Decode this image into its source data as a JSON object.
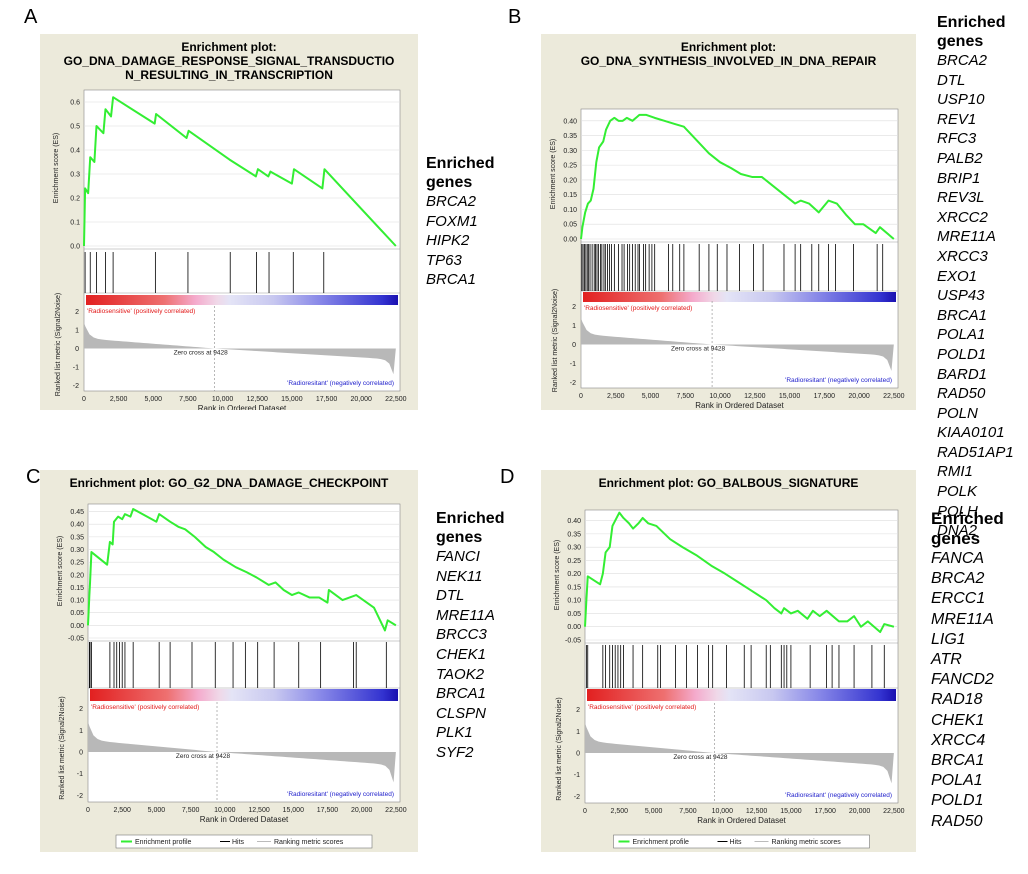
{
  "common": {
    "x_axis_label": "Rank in Ordered Dataset",
    "es_axis_label": "Enrichment score (ES)",
    "metric_axis_label": "Ranked list metric (Signal2Noise)",
    "positive_label": "'Radiosensitive' (positively correlated)",
    "negative_label": "'Radioresitant' (negatively correlated)",
    "zero_cross": "Zero cross at 9428",
    "legend": {
      "profile": "Enrichment profile",
      "hits": "Hits",
      "ranking": "Ranking metric scores"
    },
    "x_ticks": [
      "0",
      "2,500",
      "5,000",
      "7,500",
      "10,000",
      "12,500",
      "15,000",
      "17,500",
      "20,000",
      "22,500"
    ],
    "metric_ticks": [
      "2",
      "1",
      "0",
      "-1",
      "-2"
    ],
    "colors": {
      "es_line": "#33ee33",
      "hit_line": "#000000",
      "pos": "#ee2222",
      "neg": "#2222cc"
    }
  },
  "chart_data": [
    {
      "panel_label": "A",
      "type": "line",
      "title_line1": "Enrichment plot:",
      "title_lines": [
        "GO_DNA_DAMAGE_RESPONSE_SIGNAL_TRANSDUCTIO",
        "N_RESULTING_IN_TRANSCRIPTION"
      ],
      "xlim": [
        0,
        22800
      ],
      "ylim": [
        0,
        0.65
      ],
      "es_ticks": [
        0.0,
        0.1,
        0.2,
        0.3,
        0.4,
        0.5,
        0.6
      ],
      "es_tick_labels": [
        "0.0",
        "0.1",
        "0.2",
        "0.3",
        "0.4",
        "0.5",
        "0.6"
      ],
      "es_points": [
        [
          0,
          0
        ],
        [
          80,
          0.24
        ],
        [
          300,
          0.22
        ],
        [
          450,
          0.37
        ],
        [
          750,
          0.35
        ],
        [
          900,
          0.5
        ],
        [
          1400,
          0.47
        ],
        [
          1550,
          0.57
        ],
        [
          1950,
          0.54
        ],
        [
          2100,
          0.62
        ],
        [
          5100,
          0.51
        ],
        [
          5200,
          0.55
        ],
        [
          7400,
          0.45
        ],
        [
          7550,
          0.48
        ],
        [
          10500,
          0.36
        ],
        [
          12400,
          0.29
        ],
        [
          12550,
          0.32
        ],
        [
          13300,
          0.29
        ],
        [
          13450,
          0.31
        ],
        [
          15000,
          0.26
        ],
        [
          15150,
          0.32
        ],
        [
          17200,
          0.24
        ],
        [
          17350,
          0.32
        ],
        [
          22500,
          0.0
        ]
      ],
      "hits": [
        80,
        450,
        900,
        1550,
        2100,
        5150,
        7500,
        10550,
        12450,
        13350,
        15100,
        17300
      ]
    },
    {
      "panel_label": "B",
      "type": "line",
      "title_line1": "Enrichment plot:",
      "title_lines": [
        "GO_DNA_SYNTHESIS_INVOLVED_IN_DNA_REPAIR"
      ],
      "xlim": [
        0,
        22800
      ],
      "ylim": [
        0,
        0.44
      ],
      "es_ticks": [
        0.0,
        0.05,
        0.1,
        0.15,
        0.2,
        0.25,
        0.3,
        0.35,
        0.4
      ],
      "es_tick_labels": [
        "0.00",
        "0.05",
        "0.10",
        "0.15",
        "0.20",
        "0.25",
        "0.30",
        "0.35",
        "0.40"
      ],
      "es_points": [
        [
          0,
          0
        ],
        [
          100,
          0.04
        ],
        [
          300,
          0.09
        ],
        [
          500,
          0.12
        ],
        [
          700,
          0.13
        ],
        [
          900,
          0.17
        ],
        [
          1100,
          0.26
        ],
        [
          1300,
          0.31
        ],
        [
          1600,
          0.33
        ],
        [
          1800,
          0.37
        ],
        [
          2100,
          0.4
        ],
        [
          2400,
          0.41
        ],
        [
          2700,
          0.4
        ],
        [
          3000,
          0.4
        ],
        [
          3300,
          0.41
        ],
        [
          3700,
          0.4
        ],
        [
          4200,
          0.42
        ],
        [
          4700,
          0.42
        ],
        [
          5300,
          0.41
        ],
        [
          6000,
          0.4
        ],
        [
          6700,
          0.39
        ],
        [
          7400,
          0.38
        ],
        [
          8000,
          0.35
        ],
        [
          8600,
          0.32
        ],
        [
          9200,
          0.29
        ],
        [
          10000,
          0.26
        ],
        [
          10800,
          0.24
        ],
        [
          11500,
          0.22
        ],
        [
          12300,
          0.21
        ],
        [
          13000,
          0.21
        ],
        [
          13800,
          0.18
        ],
        [
          14600,
          0.15
        ],
        [
          15400,
          0.12
        ],
        [
          15800,
          0.13
        ],
        [
          16400,
          0.12
        ],
        [
          17100,
          0.09
        ],
        [
          17800,
          0.13
        ],
        [
          18400,
          0.12
        ],
        [
          19100,
          0.08
        ],
        [
          19700,
          0.05
        ],
        [
          20300,
          0.05
        ],
        [
          21200,
          0.02
        ],
        [
          21500,
          0.04
        ],
        [
          22500,
          0.0
        ]
      ],
      "hits": [
        60,
        150,
        250,
        350,
        450,
        550,
        650,
        800,
        950,
        1050,
        1150,
        1250,
        1400,
        1500,
        1650,
        1750,
        1900,
        2050,
        2200,
        2400,
        2700,
        2950,
        3100,
        3350,
        3500,
        3700,
        3900,
        4100,
        4200,
        4500,
        4650,
        4900,
        5100,
        5300,
        6300,
        6600,
        7100,
        7400,
        8500,
        9200,
        9800,
        10500,
        11400,
        12400,
        13100,
        14600,
        15400,
        15800,
        16600,
        17100,
        17800,
        18300,
        19600,
        21300,
        21700
      ]
    },
    {
      "panel_label": "C",
      "type": "line",
      "title_line1": "",
      "title_lines": [
        "Enrichment plot: GO_G2_DNA_DAMAGE_CHECKPOINT"
      ],
      "xlim": [
        0,
        22800
      ],
      "ylim": [
        -0.05,
        0.48
      ],
      "es_ticks": [
        -0.05,
        0.0,
        0.05,
        0.1,
        0.15,
        0.2,
        0.25,
        0.3,
        0.35,
        0.4,
        0.45
      ],
      "es_tick_labels": [
        "-0.05",
        "0.00",
        "0.05",
        "0.10",
        "0.15",
        "0.20",
        "0.25",
        "0.30",
        "0.35",
        "0.40",
        "0.45"
      ],
      "es_points": [
        [
          0,
          0
        ],
        [
          100,
          0.12
        ],
        [
          150,
          0.17
        ],
        [
          250,
          0.29
        ],
        [
          1400,
          0.24
        ],
        [
          1600,
          0.33
        ],
        [
          1800,
          0.32
        ],
        [
          1900,
          0.41
        ],
        [
          2200,
          0.43
        ],
        [
          2500,
          0.42
        ],
        [
          2700,
          0.44
        ],
        [
          3100,
          0.43
        ],
        [
          3300,
          0.46
        ],
        [
          5000,
          0.41
        ],
        [
          5200,
          0.44
        ],
        [
          6000,
          0.41
        ],
        [
          6600,
          0.39
        ],
        [
          7100,
          0.38
        ],
        [
          7800,
          0.35
        ],
        [
          8600,
          0.31
        ],
        [
          9200,
          0.29
        ],
        [
          9900,
          0.26
        ],
        [
          10800,
          0.23
        ],
        [
          11600,
          0.21
        ],
        [
          12300,
          0.19
        ],
        [
          13200,
          0.16
        ],
        [
          13700,
          0.17
        ],
        [
          14300,
          0.14
        ],
        [
          14900,
          0.12
        ],
        [
          15400,
          0.13
        ],
        [
          16200,
          0.11
        ],
        [
          16900,
          0.11
        ],
        [
          17500,
          0.09
        ],
        [
          17600,
          0.14
        ],
        [
          18600,
          0.1
        ],
        [
          19600,
          0.12
        ],
        [
          20900,
          0.07
        ],
        [
          21700,
          -0.02
        ],
        [
          21900,
          0.02
        ],
        [
          22500,
          0.0
        ]
      ],
      "hits": [
        100,
        150,
        250,
        1600,
        1900,
        2100,
        2300,
        2500,
        2700,
        3300,
        5200,
        6000,
        7600,
        9300,
        10600,
        11500,
        12400,
        13600,
        15400,
        17000,
        19400,
        19600,
        21800
      ]
    },
    {
      "panel_label": "D",
      "type": "line",
      "title_line1": "",
      "title_lines": [
        "Enrichment plot: GO_BALBOUS_SIGNATURE"
      ],
      "xlim": [
        0,
        22800
      ],
      "ylim": [
        -0.05,
        0.44
      ],
      "es_ticks": [
        -0.05,
        0.0,
        0.05,
        0.1,
        0.15,
        0.2,
        0.25,
        0.3,
        0.35,
        0.4
      ],
      "es_tick_labels": [
        "-0.05",
        "0.00",
        "0.05",
        "0.10",
        "0.15",
        "0.20",
        "0.25",
        "0.30",
        "0.35",
        "0.40"
      ],
      "es_points": [
        [
          0,
          0
        ],
        [
          100,
          0.1
        ],
        [
          200,
          0.19
        ],
        [
          1100,
          0.16
        ],
        [
          1300,
          0.2
        ],
        [
          1500,
          0.28
        ],
        [
          1800,
          0.3
        ],
        [
          2000,
          0.38
        ],
        [
          2300,
          0.41
        ],
        [
          2500,
          0.43
        ],
        [
          2800,
          0.41
        ],
        [
          3200,
          0.39
        ],
        [
          3500,
          0.37
        ],
        [
          3900,
          0.39
        ],
        [
          4200,
          0.41
        ],
        [
          4600,
          0.39
        ],
        [
          5200,
          0.38
        ],
        [
          6200,
          0.33
        ],
        [
          7100,
          0.3
        ],
        [
          8100,
          0.27
        ],
        [
          9200,
          0.23
        ],
        [
          10200,
          0.2
        ],
        [
          11100,
          0.17
        ],
        [
          12000,
          0.14
        ],
        [
          12600,
          0.12
        ],
        [
          13200,
          0.1
        ],
        [
          13800,
          0.07
        ],
        [
          14300,
          0.05
        ],
        [
          14500,
          0.07
        ],
        [
          15000,
          0.05
        ],
        [
          15500,
          0.06
        ],
        [
          16200,
          0.03
        ],
        [
          16600,
          0.06
        ],
        [
          17100,
          0.04
        ],
        [
          17600,
          0.06
        ],
        [
          18500,
          0.02
        ],
        [
          19100,
          0.02
        ],
        [
          19600,
          0.04
        ],
        [
          20100,
          0.0
        ],
        [
          20600,
          0.02
        ],
        [
          21500,
          -0.02
        ],
        [
          21800,
          0.01
        ],
        [
          22500,
          0.0
        ]
      ],
      "hits": [
        100,
        200,
        1300,
        1500,
        1800,
        2000,
        2200,
        2400,
        2600,
        2800,
        3500,
        4200,
        5300,
        5500,
        6600,
        7400,
        8200,
        9000,
        9300,
        10300,
        11600,
        12100,
        13200,
        13500,
        14300,
        14500,
        14700,
        15000,
        16400,
        17600,
        18000,
        18500,
        19600,
        20900,
        21800
      ]
    }
  ],
  "gene_lists": [
    {
      "panel_label": "A",
      "heading": [
        "Enriched",
        "genes"
      ],
      "genes": [
        "BRCA2",
        "FOXM1",
        "HIPK2",
        "TP63",
        "BRCA1"
      ]
    },
    {
      "panel_label": "B",
      "heading": [
        "Enriched",
        "genes"
      ],
      "genes": [
        "BRCA2",
        "DTL",
        "USP10",
        "REV1",
        "RFC3",
        "PALB2",
        "BRIP1",
        "REV3L",
        "XRCC2",
        "MRE11A",
        "XRCC3",
        "EXO1",
        "USP43",
        "BRCA1",
        "POLA1",
        "POLD1",
        "BARD1",
        "RAD50",
        "POLN",
        "KIAA0101",
        "RAD51AP1",
        "RMI1",
        "POLK",
        "POLH",
        "DNA2"
      ]
    },
    {
      "panel_label": "C",
      "heading": [
        "Enriched",
        "genes"
      ],
      "genes": [
        "FANCI",
        "NEK11",
        "DTL",
        "MRE11A",
        "BRCC3",
        "CHEK1",
        "TAOK2",
        "BRCA1",
        "CLSPN",
        "PLK1",
        "SYF2"
      ]
    },
    {
      "panel_label": "D",
      "heading": [
        "Enriched",
        "genes"
      ],
      "genes": [
        "FANCA",
        "BRCA2",
        "ERCC1",
        "MRE11A",
        "LIG1",
        "ATR",
        "FANCD2",
        "RAD18",
        "CHEK1",
        "XRCC4",
        "BRCA1",
        "POLA1",
        "POLD1",
        "RAD50"
      ]
    }
  ]
}
